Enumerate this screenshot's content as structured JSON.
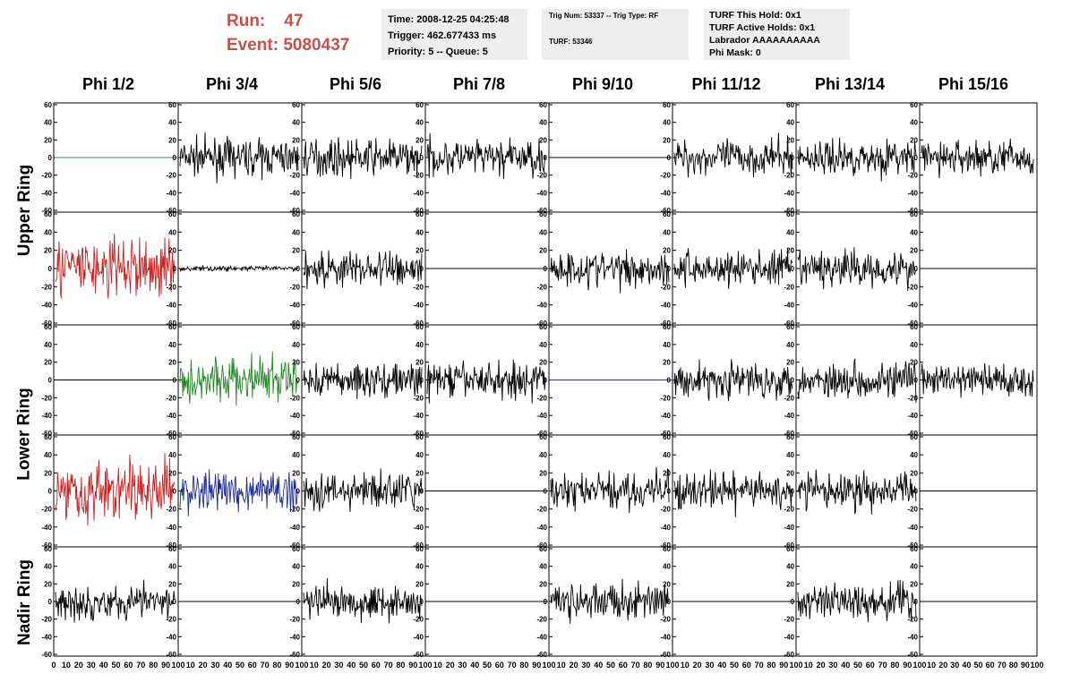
{
  "header": {
    "run_label": "Run:",
    "run_value": "47",
    "event_label": "Event:",
    "event_value": "5080437",
    "time_box": [
      "Time: 2008-12-25 04:25:48",
      "Trigger: 462.677433 ms",
      "Priority: 5 -- Queue: 5"
    ],
    "trig_box": [
      "Trig Num: 53337 -- Trig Type: RF",
      "TURF: 53346"
    ],
    "turf_box": [
      "TURF This Hold: 0x1",
      "TURF Active Holds: 0x1",
      "Labrador AAAAAAAAAA",
      "Phi Mask: 0"
    ]
  },
  "columns": [
    "Phi 1/2",
    "Phi 3/4",
    "Phi 5/6",
    "Phi 7/8",
    "Phi 9/10",
    "Phi 11/12",
    "Phi 13/14",
    "Phi 15/16"
  ],
  "ring_labels": [
    "Upper Ring",
    "Lower Ring",
    "Nadir Ring"
  ],
  "axes": {
    "y_ticks": [
      "60",
      "40",
      "20",
      "0",
      "-20",
      "-40",
      "-60"
    ],
    "x_ticks_first": "0 10 20 30 40 50 60 70 80 90 100",
    "x_ticks_others": "10 20 30 40 50 60 70 80 90 100",
    "ylim": [
      -60,
      60
    ],
    "xlim": [
      0,
      100
    ]
  },
  "colors": {
    "header_text": "#c8504a",
    "box_bg": "#eeeeee",
    "black": "#000000",
    "red": "#cc2222",
    "green": "#228822",
    "blue": "#1f2a99",
    "zero_green": "#3a9a3a",
    "zero_blue": "#2a2aaa"
  },
  "chart_data": {
    "type": "line",
    "description_rows": [
      "upper-1",
      "upper-2",
      "lower-1",
      "lower-2",
      "nadir"
    ],
    "panels": [
      [
        "flat-green",
        "noise",
        "noise",
        "noise",
        "flat",
        "noise",
        "noise",
        "noise"
      ],
      [
        "noise-red",
        "small",
        "noise",
        "flat",
        "noise",
        "noise",
        "noise",
        "flat"
      ],
      [
        "flat",
        "noise-green",
        "noise",
        "noise",
        "flat-blue",
        "noise",
        "noise",
        "noise"
      ],
      [
        "noise-red",
        "noise-blue",
        "noise",
        "flat",
        "noise",
        "noise",
        "noise",
        "flat"
      ],
      [
        "noise",
        "flat",
        "noise",
        "flat",
        "noise",
        "flat",
        "noise",
        "flat"
      ]
    ],
    "ylim": [
      -60,
      60
    ],
    "xlim": [
      0,
      100
    ]
  }
}
